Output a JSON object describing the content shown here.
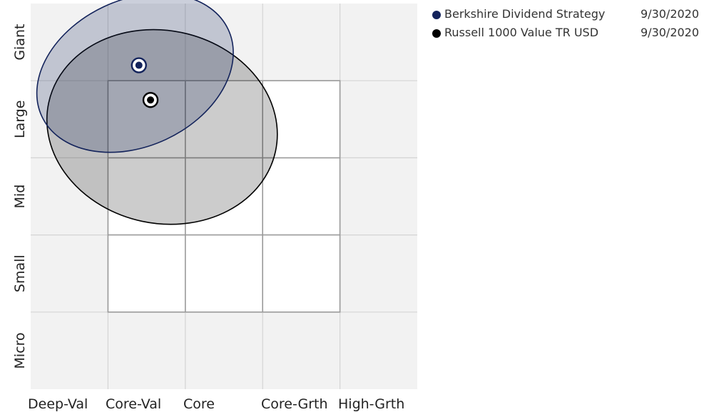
{
  "chart_data": {
    "type": "scatter",
    "title": "",
    "x_categories": [
      "Deep-Val",
      "Core-Val",
      "Core",
      "Core-Grth",
      "High-Grth"
    ],
    "y_categories": [
      "Micro",
      "Small",
      "Mid",
      "Large",
      "Giant"
    ],
    "series": [
      {
        "name": "Berkshire Dividend Strategy",
        "date": "9/30/2020",
        "color": "#13235b",
        "fill": "rgba(19,35,91,0.22)",
        "centroid": {
          "x": 1.4,
          "y": 4.2
        },
        "ellipse": {
          "cx": 1.35,
          "cy": 4.1,
          "rx": 1.33,
          "ry": 0.95,
          "rotation": -25
        }
      },
      {
        "name": "Russell 1000 Value TR USD",
        "date": "9/30/2020",
        "color": "#000000",
        "fill": "rgba(0,0,0,0.2)",
        "centroid": {
          "x": 1.55,
          "y": 3.75
        },
        "ellipse": {
          "cx": 1.7,
          "cy": 3.4,
          "rx": 1.5,
          "ry": 1.25,
          "rotation": 12
        }
      }
    ],
    "style_box": {
      "x_range": [
        1,
        4
      ],
      "y_range": [
        1,
        4
      ]
    },
    "grid": true
  }
}
